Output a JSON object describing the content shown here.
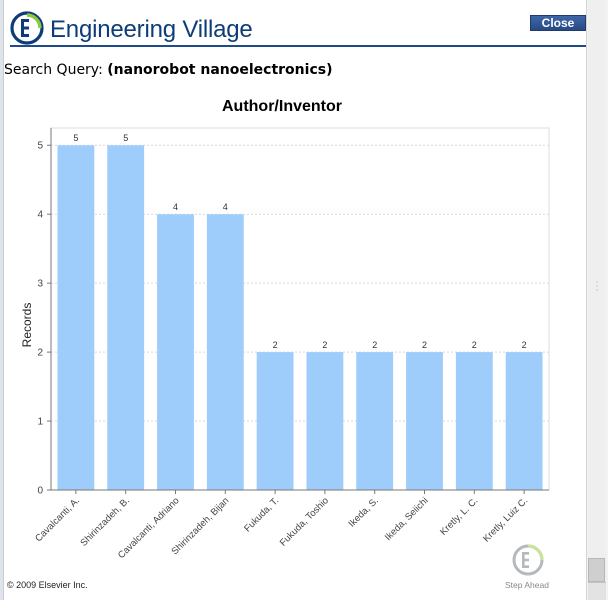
{
  "header": {
    "logo_text": "Engineering Village",
    "close_label": "Close"
  },
  "query": {
    "label": "Search Query:",
    "value": "(nanorobot nanoelectronics)"
  },
  "chart_data": {
    "type": "bar",
    "title": "Author/Inventor",
    "xlabel": "",
    "ylabel": "Records",
    "ylim": [
      0,
      5.25
    ],
    "yticks": [
      0,
      1,
      2,
      3,
      4,
      5
    ],
    "grid": true,
    "categories": [
      "Cavalcanti, A.",
      "Shirinzadeh, B.",
      "Cavalcanti, Adriano",
      "Shirinzadeh, Bijan",
      "Fukuda, T.",
      "Fukuda, Toshio",
      "Ikeda, S.",
      "Ikeda, Seiichi",
      "Kretly, L. C.",
      "Kretly, Luiz C."
    ],
    "values": [
      5,
      5,
      4,
      4,
      2,
      2,
      2,
      2,
      2,
      2
    ],
    "bar_color": "#9fcdfb",
    "data_labels": true
  },
  "footer": {
    "copyright": "© 2009 Elsevier Inc.",
    "tagline": "Step Ahead"
  },
  "colors": {
    "brand": "#0d3d78",
    "accent_green": "#8dc63f",
    "close_button": "#2f5596"
  }
}
